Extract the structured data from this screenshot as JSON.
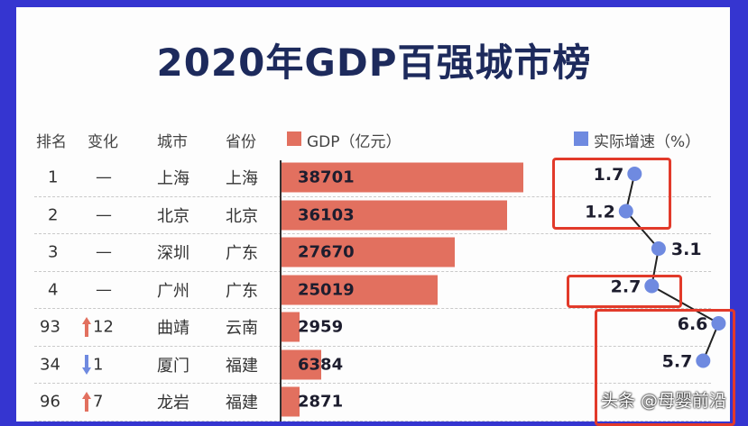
{
  "title": "2020年GDP百强城市榜",
  "headers": {
    "rank": "排名",
    "change": "变化",
    "city": "城市",
    "province": "省份",
    "gdp": "GDP（亿元）",
    "growth": "实际增速（%）"
  },
  "colors": {
    "gdp": "#e2705f",
    "growth": "#6f8ae0",
    "up": "#e2705f",
    "down": "#6f8ae0",
    "frame": "#3535d0",
    "highlight": "#e23a2a"
  },
  "watermark": "头条 @母婴前沿",
  "chart_data": {
    "type": "table",
    "title": "2020年GDP百强城市榜",
    "rows": [
      {
        "rank": "1",
        "change": "—",
        "dir": "none",
        "city": "上海",
        "province": "上海",
        "gdp": 38701,
        "gdp_label": "38701",
        "growth": 1.7,
        "growth_label": "1.7"
      },
      {
        "rank": "2",
        "change": "—",
        "dir": "none",
        "city": "北京",
        "province": "北京",
        "gdp": 36103,
        "gdp_label": "36103",
        "growth": 1.2,
        "growth_label": "1.2"
      },
      {
        "rank": "3",
        "change": "—",
        "dir": "none",
        "city": "深圳",
        "province": "广东",
        "gdp": 27670,
        "gdp_label": "27670",
        "growth": 3.1,
        "growth_label": "3.1"
      },
      {
        "rank": "4",
        "change": "—",
        "dir": "none",
        "city": "广州",
        "province": "广东",
        "gdp": 25019,
        "gdp_label": "25019",
        "growth": 2.7,
        "growth_label": "2.7"
      },
      {
        "rank": "93",
        "change": "12",
        "dir": "up",
        "city": "曲靖",
        "province": "云南",
        "gdp": 2959,
        "gdp_label": "2959",
        "growth": 6.6,
        "growth_label": "6.6"
      },
      {
        "rank": "34",
        "change": "1",
        "dir": "down",
        "city": "厦门",
        "province": "福建",
        "gdp": 6384,
        "gdp_label": "6384",
        "growth": 5.7,
        "growth_label": "5.7"
      },
      {
        "rank": "96",
        "change": "7",
        "dir": "up",
        "city": "龙岩",
        "province": "福建",
        "gdp": 2871,
        "gdp_label": "2871",
        "growth": null,
        "growth_label": null
      }
    ]
  }
}
